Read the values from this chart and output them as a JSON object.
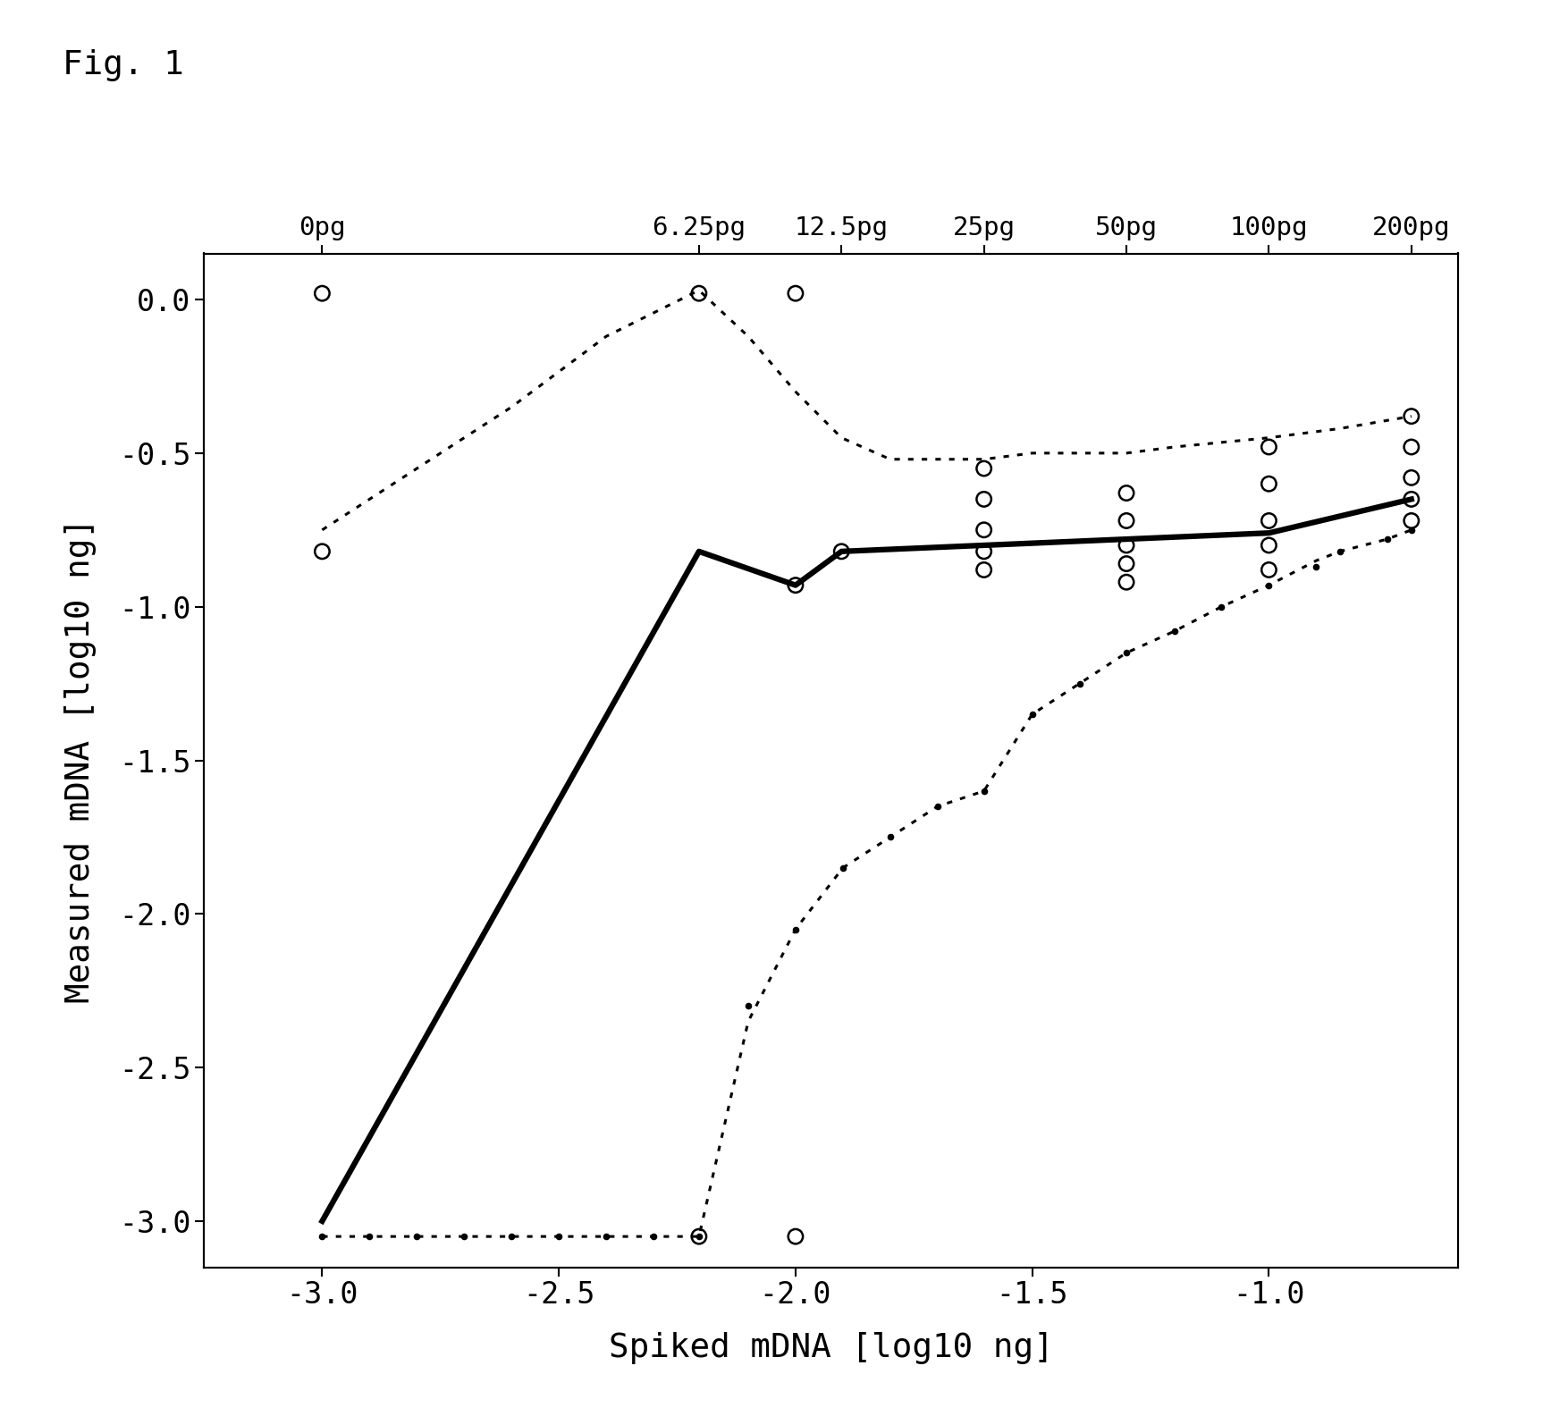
{
  "title": "Fig. 1",
  "xlabel": "Spiked mDNA [log10 ng]",
  "ylabel": "Measured mDNA [log10 ng]",
  "xlim": [
    -3.25,
    -0.6
  ],
  "ylim": [
    -3.15,
    0.15
  ],
  "xticks": [
    -3.0,
    -2.5,
    -2.0,
    -1.5,
    -1.0
  ],
  "yticks": [
    0.0,
    -0.5,
    -1.0,
    -1.5,
    -2.0,
    -2.5,
    -3.0
  ],
  "top_tick_positions": [
    -3.0,
    -2.204,
    -1.903,
    -1.602,
    -1.301,
    -1.0,
    -0.699
  ],
  "top_tick_labels": [
    "0pg",
    "6.25pg",
    "12.5pg",
    "25pg",
    "50pg",
    "100pg",
    "200pg"
  ],
  "bold_line_x": [
    -3.0,
    -2.204,
    -2.0,
    -1.903,
    -1.602,
    -1.301,
    -1.0,
    -0.699
  ],
  "bold_line_y": [
    -3.0,
    -0.82,
    -0.93,
    -0.82,
    -0.8,
    -0.78,
    -0.76,
    -0.65
  ],
  "dotted_upper_x": [
    -3.0,
    -2.8,
    -2.6,
    -2.4,
    -2.204,
    -2.1,
    -2.0,
    -1.903,
    -1.8,
    -1.602,
    -1.5,
    -1.301,
    -1.2,
    -1.0,
    -0.85,
    -0.699
  ],
  "dotted_upper_y": [
    -0.75,
    -0.55,
    -0.35,
    -0.12,
    0.03,
    -0.12,
    -0.3,
    -0.45,
    -0.52,
    -0.52,
    -0.5,
    -0.5,
    -0.48,
    -0.45,
    -0.42,
    -0.38
  ],
  "dotted_lower_x": [
    -3.0,
    -2.8,
    -2.6,
    -2.4,
    -2.204,
    -2.1,
    -2.0,
    -1.9,
    -1.8,
    -1.7,
    -1.602,
    -1.5,
    -1.4,
    -1.301,
    -1.2,
    -1.1,
    -1.0,
    -0.9,
    -0.85,
    -0.75,
    -0.699
  ],
  "dotted_lower_y": [
    -3.05,
    -3.05,
    -3.05,
    -3.05,
    -3.05,
    -2.35,
    -2.05,
    -1.85,
    -1.75,
    -1.65,
    -1.6,
    -1.35,
    -1.25,
    -1.15,
    -1.08,
    -1.0,
    -0.93,
    -0.85,
    -0.82,
    -0.78,
    -0.75
  ],
  "scatter_open_x": [
    -3.0,
    -3.0,
    -2.204,
    -2.204,
    -2.0,
    -2.0,
    -2.0,
    -1.903,
    -1.602,
    -1.602,
    -1.602,
    -1.602,
    -1.602,
    -1.301,
    -1.301,
    -1.301,
    -1.301,
    -1.301,
    -1.0,
    -1.0,
    -1.0,
    -1.0,
    -1.0,
    -0.699,
    -0.699,
    -0.699,
    -0.699,
    -0.699
  ],
  "scatter_open_y": [
    0.02,
    -0.82,
    0.02,
    -3.05,
    0.02,
    -0.93,
    -3.05,
    -0.82,
    -0.55,
    -0.65,
    -0.75,
    -0.82,
    -0.88,
    -0.63,
    -0.72,
    -0.8,
    -0.86,
    -0.92,
    -0.48,
    -0.6,
    -0.72,
    -0.8,
    -0.88,
    -0.38,
    -0.48,
    -0.58,
    -0.65,
    -0.72
  ],
  "scatter_filled_x": [
    -3.0,
    -2.9,
    -2.8,
    -2.7,
    -2.6,
    -2.5,
    -2.4,
    -2.3,
    -2.204,
    -2.1,
    -2.0,
    -1.9,
    -1.8,
    -1.7,
    -1.602,
    -1.5,
    -1.4,
    -1.301,
    -1.2,
    -1.1,
    -1.0,
    -0.9,
    -0.85,
    -0.75,
    -0.699
  ],
  "scatter_filled_y": [
    -3.05,
    -3.05,
    -3.05,
    -3.05,
    -3.05,
    -3.05,
    -3.05,
    -3.05,
    -3.05,
    -2.3,
    -2.05,
    -1.85,
    -1.75,
    -1.65,
    -1.6,
    -1.35,
    -1.25,
    -1.15,
    -1.08,
    -1.0,
    -0.93,
    -0.87,
    -0.82,
    -0.78,
    -0.75
  ],
  "background_color": "#ffffff",
  "line_color": "#000000",
  "dotted_color": "#000000"
}
